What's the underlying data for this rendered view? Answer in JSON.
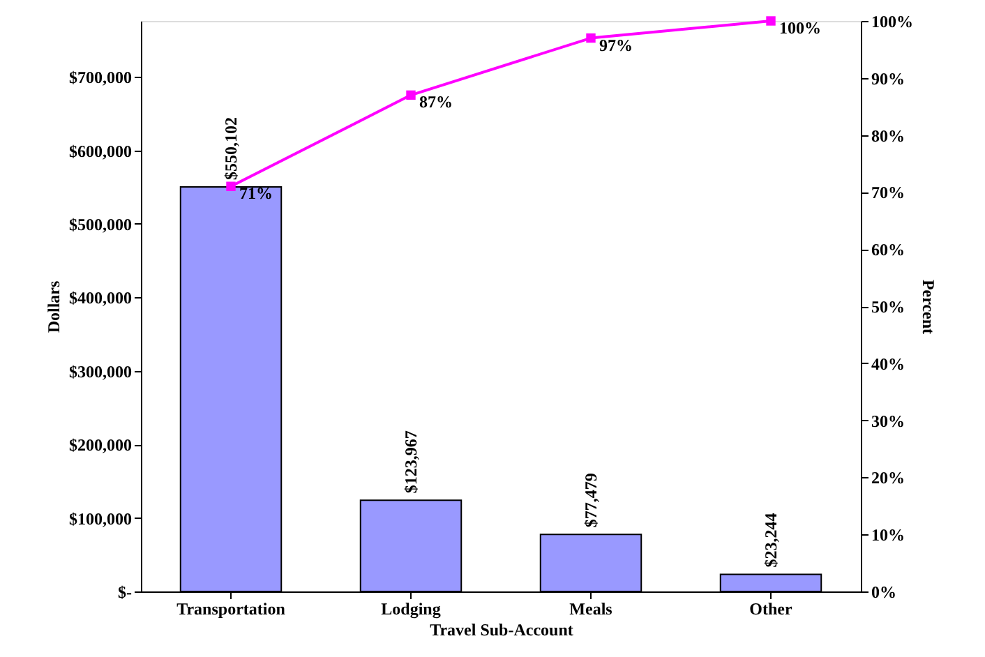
{
  "chart_data": {
    "type": "bar",
    "xlabel": "Travel Sub-Account",
    "ylabel": "Dollars",
    "y2label": "Percent",
    "categories": [
      "Transportation",
      "Lodging",
      "Meals",
      "Other"
    ],
    "series": [
      {
        "color": "#9999ff",
        "values": [
          550102,
          123967,
          77479,
          23244
        ],
        "value_labels": [
          "$550,102",
          "$123,967",
          "$77,479",
          "$23,244"
        ]
      },
      {
        "type": "line",
        "axis": "y2",
        "color": "#ff00ff",
        "values": [
          71,
          87,
          97,
          100
        ],
        "value_labels": [
          "71%",
          "87%",
          "97%",
          "100%"
        ]
      }
    ],
    "ylim": [
      0,
      776000
    ],
    "yticks": [
      {
        "value": 0,
        "label": "$-"
      },
      {
        "value": 100000,
        "label": "$100,000"
      },
      {
        "value": 200000,
        "label": "$200,000"
      },
      {
        "value": 300000,
        "label": "$300,000"
      },
      {
        "value": 400000,
        "label": "$400,000"
      },
      {
        "value": 500000,
        "label": "$500,000"
      },
      {
        "value": 600000,
        "label": "$600,000"
      },
      {
        "value": 700000,
        "label": "$700,000"
      }
    ],
    "y2lim": [
      0,
      100
    ],
    "y2ticks": [
      {
        "value": 0,
        "label": "0%"
      },
      {
        "value": 10,
        "label": "10%"
      },
      {
        "value": 20,
        "label": "20%"
      },
      {
        "value": 30,
        "label": "30%"
      },
      {
        "value": 40,
        "label": "40%"
      },
      {
        "value": 50,
        "label": "50%"
      },
      {
        "value": 60,
        "label": "60%"
      },
      {
        "value": 70,
        "label": "70%"
      },
      {
        "value": 80,
        "label": "80%"
      },
      {
        "value": 90,
        "label": "90%"
      },
      {
        "value": 100,
        "label": "100%"
      }
    ],
    "marker": "square",
    "grid": false
  }
}
